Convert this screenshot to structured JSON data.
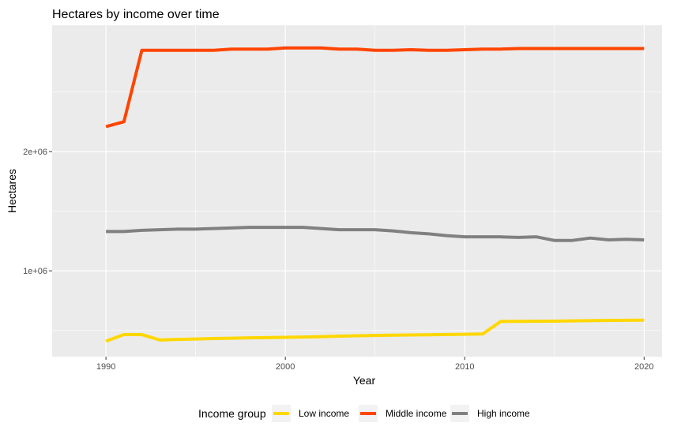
{
  "chart_data": {
    "type": "line",
    "title": "Hectares by income over time",
    "xlabel": "Year",
    "ylabel": "Hectares",
    "x": [
      1990,
      1991,
      1992,
      1993,
      1994,
      1995,
      1996,
      1997,
      1998,
      1999,
      2000,
      2001,
      2002,
      2003,
      2004,
      2005,
      2006,
      2007,
      2008,
      2009,
      2010,
      2011,
      2012,
      2013,
      2014,
      2015,
      2016,
      2017,
      2018,
      2019,
      2020
    ],
    "xlim": [
      1987,
      2021
    ],
    "ylim": [
      280000,
      3060000
    ],
    "xticks": [
      1990,
      2000,
      2010,
      2020
    ],
    "xtick_labels": [
      "1990",
      "2000",
      "2010",
      "2020"
    ],
    "yticks": [
      1000000,
      2000000
    ],
    "ytick_labels": [
      "1e+06",
      "2e+06"
    ],
    "grid": true,
    "legend": {
      "title": "Income group",
      "position": "bottom"
    },
    "series": [
      {
        "name": "Low income",
        "color": "#FFD700",
        "values": [
          410000,
          465000,
          465000,
          420000,
          425000,
          428000,
          432000,
          435000,
          438000,
          440000,
          442000,
          445000,
          448000,
          452000,
          455000,
          458000,
          460000,
          462000,
          464000,
          466000,
          468000,
          470000,
          575000,
          576000,
          577000,
          578000,
          580000,
          582000,
          584000,
          585000,
          586000
        ]
      },
      {
        "name": "Middle income",
        "color": "#FF4500",
        "values": [
          2210000,
          2250000,
          2850000,
          2850000,
          2850000,
          2850000,
          2850000,
          2860000,
          2860000,
          2860000,
          2870000,
          2870000,
          2870000,
          2860000,
          2860000,
          2850000,
          2850000,
          2855000,
          2850000,
          2850000,
          2855000,
          2860000,
          2860000,
          2865000,
          2865000,
          2865000,
          2865000,
          2865000,
          2865000,
          2865000,
          2865000
        ]
      },
      {
        "name": "High income",
        "color": "#808080",
        "values": [
          1330000,
          1330000,
          1340000,
          1345000,
          1350000,
          1350000,
          1355000,
          1360000,
          1365000,
          1365000,
          1365000,
          1365000,
          1355000,
          1345000,
          1345000,
          1345000,
          1335000,
          1320000,
          1310000,
          1295000,
          1285000,
          1285000,
          1285000,
          1280000,
          1285000,
          1255000,
          1255000,
          1275000,
          1260000,
          1265000,
          1260000
        ]
      }
    ]
  }
}
